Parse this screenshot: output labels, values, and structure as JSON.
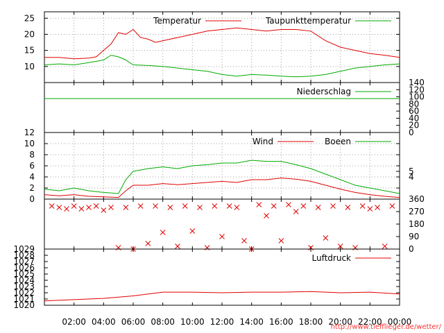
{
  "colors": {
    "red": "#e00000",
    "green": "#00aa00",
    "axis": "#000000",
    "grid": "#a0a0a0",
    "link": "#ff3333"
  },
  "source_link": "http://www.tiefflieger.de/wetter/",
  "time_axis": {
    "range_hours": [
      0,
      24
    ],
    "tick_labels": [
      "02:00",
      "04:00",
      "06:00",
      "08:00",
      "10:00",
      "12:00",
      "14:00",
      "16:00",
      "18:00",
      "20:00",
      "22:00",
      "00:00"
    ],
    "tick_hours": [
      2,
      4,
      6,
      8,
      10,
      12,
      14,
      16,
      18,
      20,
      22,
      24
    ]
  },
  "chart_data": [
    {
      "type": "line",
      "panel": "temperature",
      "ylim": [
        5,
        27
      ],
      "y_ticks": [
        10,
        15,
        20,
        25
      ],
      "grid": true,
      "legend": "top-right",
      "series": [
        {
          "name": "Temperatur",
          "color": "#e00000",
          "x": [
            0,
            1,
            2,
            3,
            3.5,
            4,
            4.5,
            5,
            5.5,
            6,
            6.5,
            7,
            7.5,
            8,
            9,
            10,
            11,
            12,
            13,
            14,
            15,
            16,
            17,
            18,
            19,
            20,
            21,
            22,
            23,
            24
          ],
          "y": [
            12.8,
            12.8,
            12.4,
            12.6,
            13,
            15,
            17,
            20.5,
            20,
            21.5,
            19,
            18.5,
            17.5,
            18,
            19,
            20,
            21,
            21.5,
            22,
            21.5,
            21,
            21.5,
            21.5,
            21,
            18,
            16,
            15,
            14,
            13.5,
            12.8
          ]
        },
        {
          "name": "Taupunkttemperatur",
          "color": "#00aa00",
          "x": [
            0,
            1,
            2,
            3,
            4,
            4.5,
            5,
            5.5,
            6,
            7,
            8,
            9,
            10,
            11,
            12,
            13,
            14,
            15,
            16,
            17,
            18,
            19,
            20,
            21,
            22,
            23,
            24
          ],
          "y": [
            10.5,
            10.8,
            10.5,
            11.2,
            12,
            13.5,
            13,
            12,
            10.5,
            10.3,
            10,
            9.5,
            9,
            8.5,
            7.5,
            7,
            7.5,
            7.3,
            7,
            6.8,
            7,
            7.5,
            8.5,
            9.5,
            10,
            10.5,
            10.8
          ]
        }
      ]
    },
    {
      "type": "line",
      "panel": "precipitation",
      "ylim": [
        0,
        140
      ],
      "y_ticks_right": [
        0,
        20,
        40,
        60,
        80,
        100,
        120,
        140
      ],
      "grid": false,
      "legend": "top-right",
      "series": [
        {
          "name": "Niederschlag",
          "color": "#00aa00",
          "x": [
            0,
            24
          ],
          "y": [
            95,
            95
          ]
        }
      ]
    },
    {
      "type": "line",
      "panel": "wind",
      "ylim": [
        0,
        12
      ],
      "y_ticks": [
        0,
        2,
        4,
        6,
        8,
        10,
        12
      ],
      "y_ticks_right": [
        4,
        5
      ],
      "grid": true,
      "legend": "top-right",
      "series": [
        {
          "name": "Wind",
          "color": "#e00000",
          "x": [
            0,
            1,
            2,
            3,
            4,
            5,
            5.5,
            6,
            7,
            8,
            9,
            10,
            11,
            12,
            13,
            14,
            15,
            16,
            17,
            18,
            19,
            20,
            21,
            22,
            23,
            24
          ],
          "y": [
            0.8,
            0.6,
            0.8,
            0.5,
            0.4,
            0.3,
            1.5,
            2.5,
            2.5,
            2.8,
            2.6,
            2.8,
            3,
            3.2,
            3,
            3.5,
            3.5,
            3.8,
            3.6,
            3.2,
            2.5,
            1.8,
            1.2,
            0.8,
            0.5,
            0.3
          ]
        },
        {
          "name": "Boeen",
          "color": "#00aa00",
          "x": [
            0,
            1,
            2,
            3,
            4,
            5,
            5.5,
            6,
            7,
            8,
            9,
            10,
            11,
            12,
            13,
            14,
            15,
            16,
            17,
            18,
            19,
            20,
            21,
            22,
            23,
            24
          ],
          "y": [
            1.8,
            1.5,
            2,
            1.5,
            1.2,
            1,
            3.5,
            5,
            5.5,
            5.8,
            5.5,
            6,
            6.2,
            6.5,
            6.5,
            7,
            6.8,
            6.8,
            6.2,
            5.5,
            4.5,
            3.5,
            2.5,
            2,
            1.5,
            1
          ]
        }
      ]
    },
    {
      "type": "scatter",
      "panel": "wind_direction",
      "ylim": [
        0,
        360
      ],
      "y_ticks_right": [
        0,
        90,
        180,
        270,
        360
      ],
      "series": [
        {
          "name": "",
          "color": "#e00000",
          "x": [
            0.5,
            1,
            1.5,
            2,
            2.5,
            3,
            3.5,
            4,
            4.5,
            5,
            5.5,
            6,
            6.5,
            7,
            7.5,
            8,
            8.5,
            9,
            9.5,
            10,
            10.5,
            11,
            11.5,
            12,
            12.5,
            13,
            13.5,
            14,
            14.5,
            15,
            15.5,
            16,
            16.5,
            17,
            17.5,
            18,
            18.5,
            19,
            19.5,
            20,
            20.5,
            21,
            21.5,
            22,
            22.5,
            23,
            23.5
          ],
          "y": [
            310,
            300,
            290,
            310,
            290,
            300,
            310,
            280,
            300,
            10,
            300,
            0,
            310,
            40,
            310,
            120,
            300,
            20,
            310,
            130,
            300,
            10,
            310,
            90,
            310,
            300,
            60,
            0,
            320,
            240,
            310,
            60,
            320,
            270,
            310,
            10,
            300,
            80,
            310,
            20,
            300,
            10,
            310,
            290,
            300,
            20,
            310
          ]
        }
      ]
    },
    {
      "type": "line",
      "panel": "pressure",
      "ylim": [
        1020,
        1029
      ],
      "y_ticks": [
        1020,
        1021,
        1022,
        1023,
        1024,
        1025,
        1026,
        1027,
        1028,
        1029
      ],
      "grid": false,
      "legend": "top-right",
      "series": [
        {
          "name": "Luftdruck",
          "color": "#e00000",
          "x": [
            0,
            2,
            4,
            6,
            8,
            10,
            12,
            14,
            16,
            18,
            20,
            22,
            24
          ],
          "y": [
            1020.7,
            1020.9,
            1021.1,
            1021.5,
            1022.1,
            1022.1,
            1022.0,
            1022.1,
            1022.1,
            1022.2,
            1022.0,
            1022.1,
            1021.8
          ]
        }
      ]
    }
  ]
}
